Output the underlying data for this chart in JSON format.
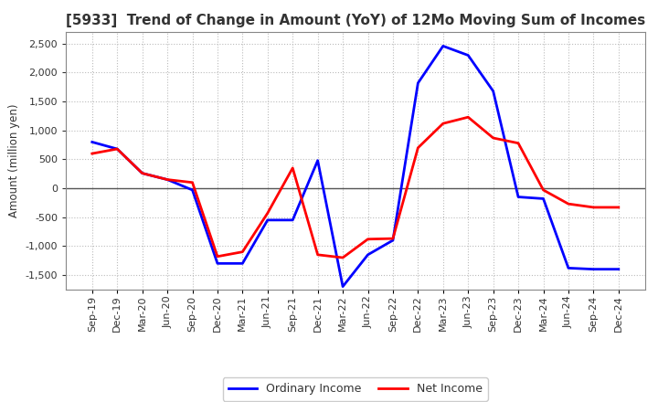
{
  "title": "[5933]  Trend of Change in Amount (YoY) of 12Mo Moving Sum of Incomes",
  "ylabel": "Amount (million yen)",
  "x_labels": [
    "Sep-19",
    "Dec-19",
    "Mar-20",
    "Jun-20",
    "Sep-20",
    "Dec-20",
    "Mar-21",
    "Jun-21",
    "Sep-21",
    "Dec-21",
    "Mar-22",
    "Jun-22",
    "Sep-22",
    "Dec-22",
    "Mar-23",
    "Jun-23",
    "Sep-23",
    "Dec-23",
    "Mar-24",
    "Jun-24",
    "Sep-24",
    "Dec-24"
  ],
  "ordinary_income": [
    800,
    680,
    260,
    150,
    -30,
    -1300,
    -1300,
    -550,
    -550,
    480,
    -1700,
    -1150,
    -900,
    1820,
    2460,
    2300,
    1680,
    -150,
    -180,
    -1380,
    -1400,
    -1400
  ],
  "net_income": [
    600,
    680,
    260,
    150,
    100,
    -1180,
    -1100,
    -430,
    350,
    -1150,
    -1200,
    -880,
    -870,
    700,
    1120,
    1230,
    870,
    780,
    -30,
    -270,
    -330,
    -330
  ],
  "ordinary_color": "#0000ff",
  "net_color": "#ff0000",
  "ylim": [
    -1750,
    2700
  ],
  "yticks": [
    -1500,
    -1000,
    -500,
    0,
    500,
    1000,
    1500,
    2000,
    2500
  ],
  "bg_color": "#ffffff",
  "plot_bg_color": "#ffffff",
  "grid_color": "#bbbbbb",
  "title_color": "#333333",
  "tick_color": "#333333",
  "zero_line_color": "#555555",
  "spine_color": "#888888",
  "legend_labels": [
    "Ordinary Income",
    "Net Income"
  ],
  "title_fontsize": 11,
  "label_fontsize": 8.5,
  "tick_fontsize": 8,
  "legend_fontsize": 9,
  "linewidth": 2.0
}
